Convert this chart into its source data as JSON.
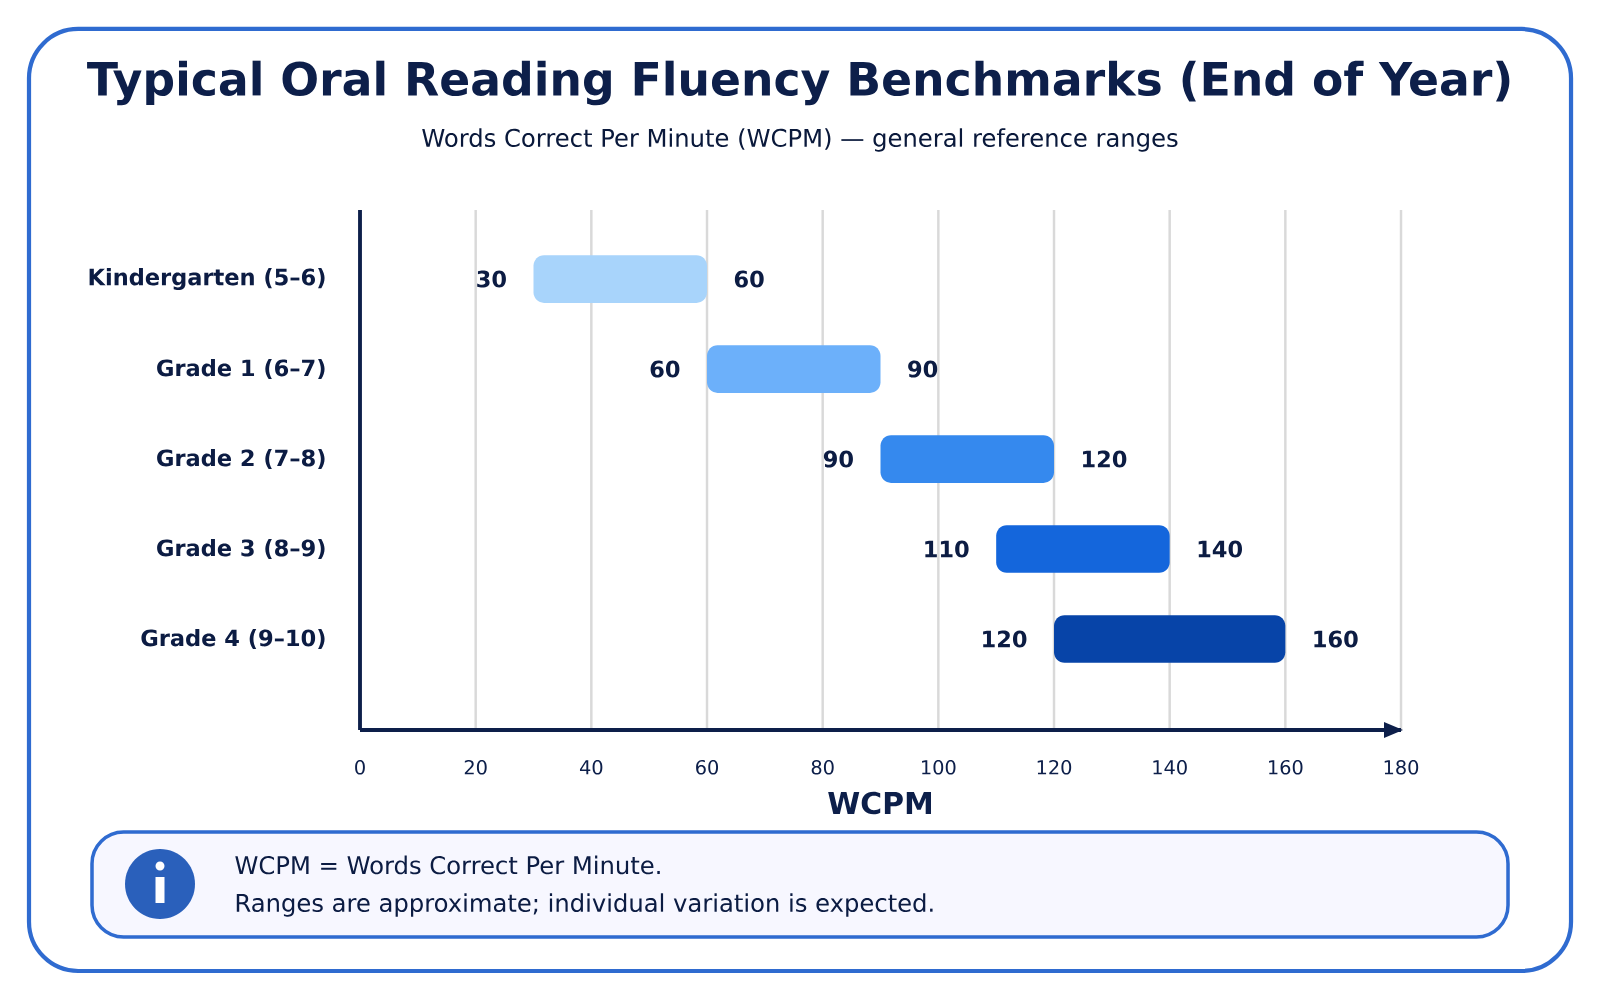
{
  "chart_data": {
    "type": "bar",
    "orientation": "horizontal",
    "title": "Typical Oral Reading Fluency Benchmarks (End of Year)",
    "subtitle": "Words Correct Per Minute (WCPM) — general reference ranges",
    "xlabel": "WCPM",
    "categories": [
      "Kindergarten (5–6)",
      "Grade 1 (6–7)",
      "Grade 2 (7–8)",
      "Grade 3 (8–9)",
      "Grade 4 (9–10)"
    ],
    "base": [
      30,
      60,
      90,
      110,
      120
    ],
    "values": [
      30,
      30,
      30,
      30,
      40
    ],
    "colors": [
      "#a8d4fb",
      "#6cb0fa",
      "#3589ee",
      "#1466dc",
      "#0744a8"
    ],
    "xlim": [
      0,
      180
    ],
    "xticks": [
      0,
      20,
      40,
      60,
      80,
      100,
      120,
      140,
      160,
      180
    ],
    "grid": "x",
    "annotations": [
      {
        "text": "30",
        "x": 30,
        "y": "Kindergarten (5–6)"
      },
      {
        "text": "60",
        "x": 60,
        "y": "Kindergarten (5–6)"
      },
      {
        "text": "60",
        "x": 60,
        "y": "Grade 1 (6–7)"
      },
      {
        "text": "90",
        "x": 90,
        "y": "Grade 1 (6–7)"
      },
      {
        "text": "90",
        "x": 90,
        "y": "Grade 2 (7–8)"
      },
      {
        "text": "120",
        "x": 120,
        "y": "Grade 2 (7–8)"
      },
      {
        "text": "110",
        "x": 110,
        "y": "Grade 3 (8–9)"
      },
      {
        "text": "140",
        "x": 140,
        "y": "Grade 3 (8–9)"
      },
      {
        "text": "120",
        "x": 120,
        "y": "Grade 4 (9–10)"
      },
      {
        "text": "160",
        "x": 160,
        "y": "Grade 4 (9–10)"
      },
      "WCPM = Words Correct Per Minute.",
      "Ranges are approximate; individual variation is expected."
    ]
  }
}
